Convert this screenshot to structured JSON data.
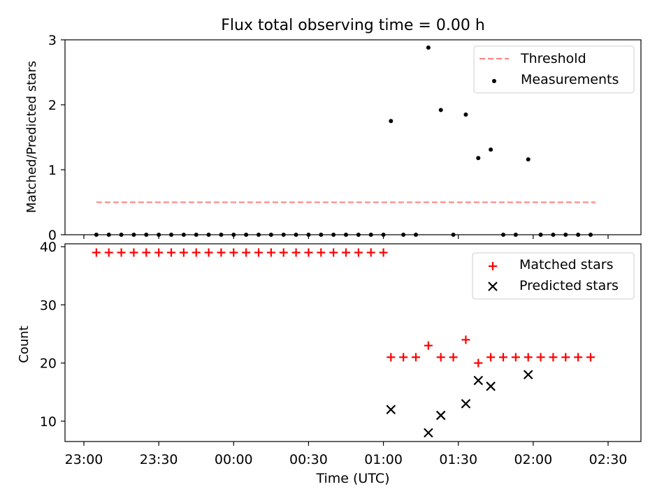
{
  "chart_data": [
    {
      "type": "scatter",
      "title": "Flux total observing time = 0.00 h",
      "xlabel": "",
      "ylabel": "Matched/Predicted stars",
      "ylim": [
        0,
        3
      ],
      "yticks": [
        "0",
        "1",
        "2",
        "3"
      ],
      "legend_placement": "top-right",
      "series": [
        {
          "name": "Threshold",
          "kind": "dashed-line",
          "color": "#ff8080",
          "x": [
            "23:05",
            "02:25"
          ],
          "values": [
            0.5,
            0.5
          ]
        },
        {
          "name": "Measurements",
          "kind": "points",
          "color": "#000000",
          "x": [
            "23:05",
            "23:10",
            "23:15",
            "23:20",
            "23:25",
            "23:30",
            "23:35",
            "23:40",
            "23:45",
            "23:50",
            "23:55",
            "00:00",
            "00:05",
            "00:10",
            "00:15",
            "00:20",
            "00:25",
            "00:30",
            "00:35",
            "00:40",
            "00:45",
            "00:50",
            "00:55",
            "01:00",
            "01:03",
            "01:08",
            "01:13",
            "01:18",
            "01:23",
            "01:28",
            "01:33",
            "01:38",
            "01:43",
            "01:48",
            "01:53",
            "01:58",
            "02:03",
            "02:08",
            "02:13",
            "02:18",
            "02:23"
          ],
          "values": [
            0,
            0,
            0,
            0,
            0,
            0,
            0,
            0,
            0,
            0,
            0,
            0,
            0,
            0,
            0,
            0,
            0,
            0,
            0,
            0,
            0,
            0,
            0,
            0,
            1.75,
            0,
            0,
            2.88,
            1.92,
            0,
            1.85,
            1.18,
            1.31,
            0,
            0,
            1.16,
            0,
            0,
            0,
            0,
            0
          ]
        }
      ]
    },
    {
      "type": "scatter",
      "title": "",
      "xlabel": "Time (UTC)",
      "ylabel": "Count",
      "ylim": [
        6.5,
        40.5
      ],
      "yticks": [
        "10",
        "20",
        "30",
        "40"
      ],
      "xticks": [
        "23:00",
        "23:30",
        "00:00",
        "00:30",
        "01:00",
        "01:30",
        "02:00",
        "02:30"
      ],
      "legend_placement": "top-right",
      "series": [
        {
          "name": "Matched stars",
          "kind": "plus",
          "color": "#ff0000",
          "x": [
            "23:05",
            "23:10",
            "23:15",
            "23:20",
            "23:25",
            "23:30",
            "23:35",
            "23:40",
            "23:45",
            "23:50",
            "23:55",
            "00:00",
            "00:05",
            "00:10",
            "00:15",
            "00:20",
            "00:25",
            "00:30",
            "00:35",
            "00:40",
            "00:45",
            "00:50",
            "00:55",
            "01:00",
            "01:03",
            "01:08",
            "01:13",
            "01:18",
            "01:23",
            "01:28",
            "01:33",
            "01:38",
            "01:43",
            "01:48",
            "01:53",
            "01:58",
            "02:03",
            "02:08",
            "02:13",
            "02:18",
            "02:23"
          ],
          "values": [
            39,
            39,
            39,
            39,
            39,
            39,
            39,
            39,
            39,
            39,
            39,
            39,
            39,
            39,
            39,
            39,
            39,
            39,
            39,
            39,
            39,
            39,
            39,
            39,
            21,
            21,
            21,
            23,
            21,
            21,
            24,
            20,
            21,
            21,
            21,
            21,
            21,
            21,
            21,
            21,
            21
          ]
        },
        {
          "name": "Predicted stars",
          "kind": "x",
          "color": "#000000",
          "x": [
            "01:03",
            "01:18",
            "01:23",
            "01:33",
            "01:38",
            "01:43",
            "01:58"
          ],
          "values": [
            12,
            8,
            11,
            13,
            17,
            16,
            18
          ]
        }
      ]
    }
  ]
}
